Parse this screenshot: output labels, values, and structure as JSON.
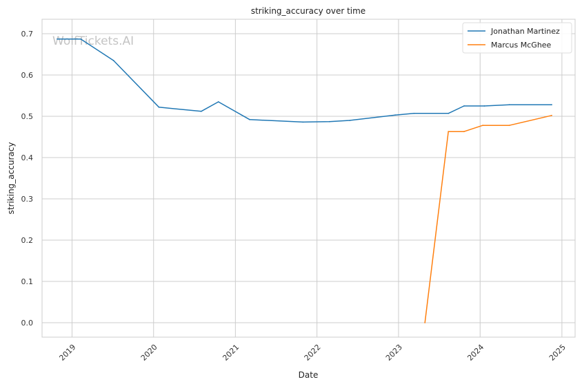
{
  "watermark": "WolfTickets.AI",
  "chart_data": {
    "type": "line",
    "title": "striking_accuracy over time",
    "xlabel": "Date",
    "ylabel": "striking_accuracy",
    "x_ticks": [
      "2019",
      "2020",
      "2021",
      "2022",
      "2023",
      "2024",
      "2025"
    ],
    "y_ticks": [
      "0.0",
      "0.1",
      "0.2",
      "0.3",
      "0.4",
      "0.5",
      "0.6",
      "0.7"
    ],
    "xlim": [
      "2018-08-20",
      "2025-03-01"
    ],
    "ylim": [
      -0.035,
      0.735
    ],
    "grid": true,
    "legend_position": "top-right",
    "series": [
      {
        "name": "Jonathan Martinez",
        "color": "#1f77b4",
        "points": [
          {
            "x": "2018-10-27",
            "y": 0.687
          },
          {
            "x": "2019-02-09",
            "y": 0.687
          },
          {
            "x": "2019-07-06",
            "y": 0.635
          },
          {
            "x": "2020-01-25",
            "y": 0.522
          },
          {
            "x": "2020-08-01",
            "y": 0.512
          },
          {
            "x": "2020-10-17",
            "y": 0.535
          },
          {
            "x": "2021-03-06",
            "y": 0.492
          },
          {
            "x": "2021-10-30",
            "y": 0.486
          },
          {
            "x": "2022-02-26",
            "y": 0.487
          },
          {
            "x": "2022-05-28",
            "y": 0.49
          },
          {
            "x": "2022-12-17",
            "y": 0.503
          },
          {
            "x": "2023-03-11",
            "y": 0.507
          },
          {
            "x": "2023-08-12",
            "y": 0.507
          },
          {
            "x": "2023-10-21",
            "y": 0.525
          },
          {
            "x": "2024-01-20",
            "y": 0.525
          },
          {
            "x": "2024-05-11",
            "y": 0.528
          },
          {
            "x": "2024-11-16",
            "y": 0.528
          }
        ]
      },
      {
        "name": "Marcus McGhee",
        "color": "#ff7f0e",
        "points": [
          {
            "x": "2023-04-29",
            "y": 0.0
          },
          {
            "x": "2023-08-12",
            "y": 0.463
          },
          {
            "x": "2023-10-21",
            "y": 0.463
          },
          {
            "x": "2024-01-13",
            "y": 0.478
          },
          {
            "x": "2024-05-11",
            "y": 0.478
          },
          {
            "x": "2024-11-16",
            "y": 0.502
          }
        ]
      }
    ]
  }
}
